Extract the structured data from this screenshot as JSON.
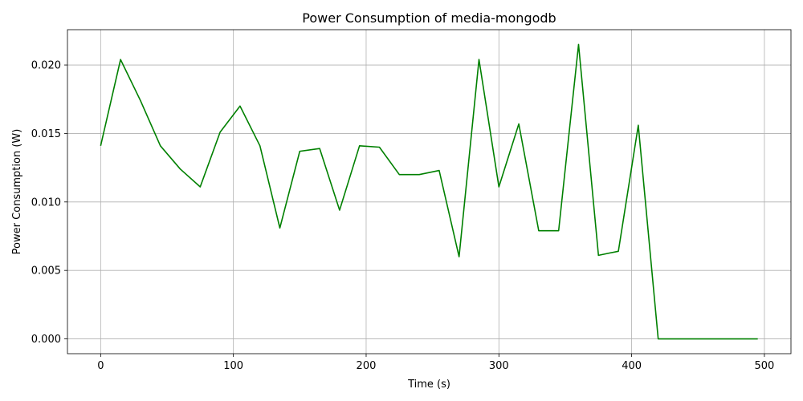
{
  "chart_data": {
    "type": "line",
    "title": "Power Consumption of media-mongodb",
    "xlabel": "Time (s)",
    "ylabel": "Power Consumption (W)",
    "xlim": [
      -25,
      520
    ],
    "ylim": [
      -0.00108,
      0.02258
    ],
    "x_ticks": [
      0,
      100,
      200,
      300,
      400,
      500
    ],
    "y_ticks": [
      0.0,
      0.005,
      0.01,
      0.015,
      0.02
    ],
    "x_tick_labels": [
      "0",
      "100",
      "200",
      "300",
      "400",
      "500"
    ],
    "y_tick_labels": [
      "0.000",
      "0.005",
      "0.010",
      "0.015",
      "0.020"
    ],
    "grid": true,
    "series": [
      {
        "color": "#008000",
        "x": [
          0,
          15,
          30,
          45,
          60,
          75,
          90,
          105,
          120,
          135,
          150,
          165,
          180,
          195,
          210,
          225,
          240,
          255,
          270,
          285,
          300,
          315,
          330,
          345,
          360,
          375,
          390,
          405,
          420,
          435,
          450,
          465,
          480,
          495
        ],
        "y": [
          0.0141,
          0.0204,
          0.0174,
          0.0141,
          0.0124,
          0.0111,
          0.0151,
          0.017,
          0.0141,
          0.0081,
          0.0137,
          0.0139,
          0.0094,
          0.0141,
          0.014,
          0.012,
          0.012,
          0.0123,
          0.006,
          0.0204,
          0.0111,
          0.0157,
          0.0079,
          0.0079,
          0.0215,
          0.0061,
          0.0064,
          0.0156,
          0.0,
          0.0,
          0.0,
          0.0,
          0.0,
          0.0
        ]
      }
    ]
  }
}
